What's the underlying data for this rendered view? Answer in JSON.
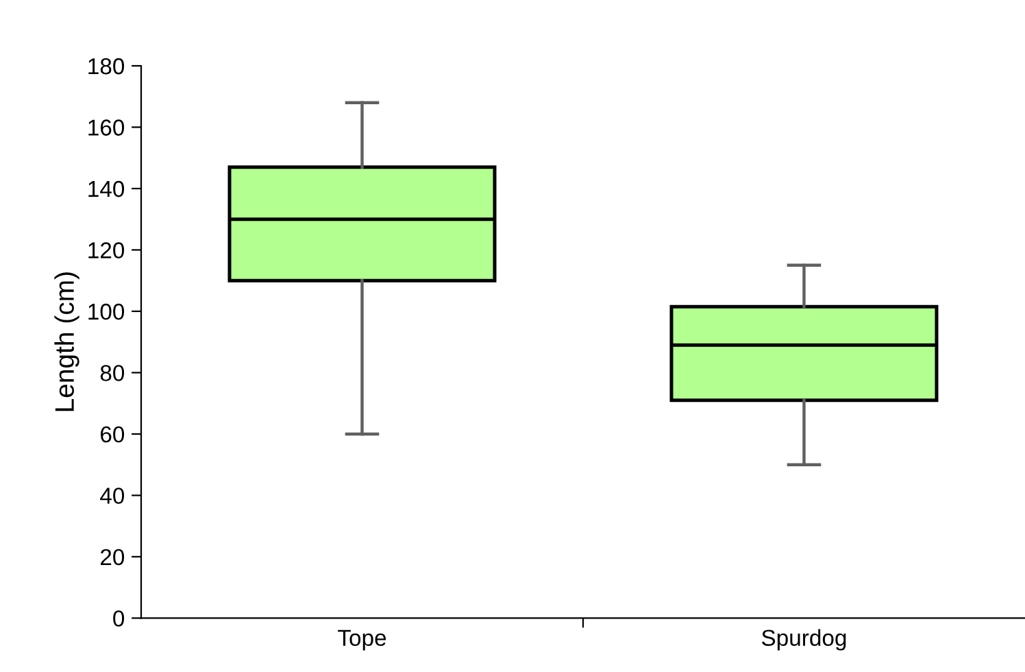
{
  "chart_data": {
    "type": "box",
    "ylabel": "Length (cm)",
    "categories": [
      "Tope",
      "Spurdog"
    ],
    "boxes": [
      {
        "low": 60,
        "q1": 110,
        "median": 130,
        "q3": 147,
        "high": 168
      },
      {
        "low": 50,
        "q1": 71,
        "median": 89,
        "q3": 101.5,
        "high": 115
      }
    ],
    "color": "#b3ff8f",
    "ylim": [
      0,
      180
    ],
    "yticks": [
      0,
      20,
      40,
      60,
      80,
      100,
      120,
      140,
      160,
      180
    ],
    "grid": false,
    "legend": false
  }
}
